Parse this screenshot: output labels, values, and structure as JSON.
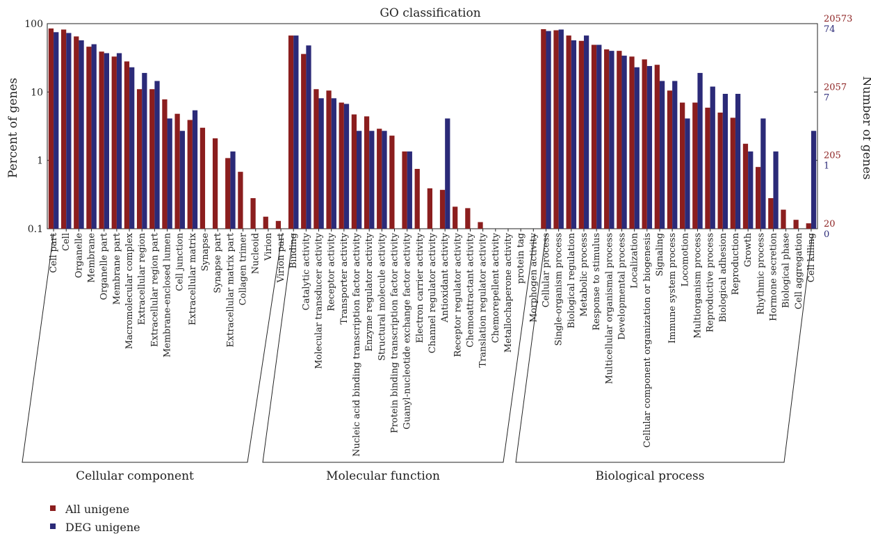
{
  "chart_data": {
    "type": "bar",
    "title": "GO classification",
    "ylabel_left": "Percent of genes",
    "ylabel_right": "Number of genes",
    "y_scale": "log",
    "ylim": [
      0.1,
      100
    ],
    "left_ticks": [
      "100",
      "10",
      "1",
      "0.1"
    ],
    "left_tick_values": [
      100,
      10,
      1,
      0.1
    ],
    "right_ticks_all": [
      "20573",
      "2057",
      "205",
      "20"
    ],
    "right_ticks_deg": [
      "74",
      "7",
      "1",
      "0"
    ],
    "colors": {
      "all": "#8b1e1e",
      "deg": "#2b2a78",
      "right_all_text": "#8b1e1e",
      "right_deg_text": "#2b2a78"
    },
    "series": [
      {
        "name": "All unigene",
        "key": "all"
      },
      {
        "name": "DEG unigene",
        "key": "deg"
      }
    ],
    "categories": [
      "Cell part",
      "Cell",
      "Organelle",
      "Membrane",
      "Organelle part",
      "Membrane part",
      "Macromolecular complex",
      "Extracellular region",
      "Extracellular region part",
      "Membrane-enclosed lumen",
      "Cell junction",
      "Extracellular matrix",
      "Synapse",
      "Synapse part",
      "Extracellular matrix part",
      "Collagen trimer",
      "Nucleoid",
      "Virion",
      "Virion part",
      "Binding",
      "Catalytic activity",
      "Molecular transducer activity",
      "Receptor activity",
      "Transporter activity",
      "Nucleic acid binding transcription factor activity",
      "Enzyme regulator activity",
      "Structural molecule activity",
      "Protein binding transcription factor activity",
      "Guanyl-nucleotide exchange factor activity",
      "Electron carrier activity",
      "Channel regulator activity",
      "Antioxidant activity",
      "Receptor regulator activity",
      "Chemoattractant activity",
      "Translation regulator activity",
      "Chemorepellent activity",
      "Metallochaperone activity",
      "protein tag",
      "Morphogen activity",
      "Cellular process",
      "Single-organism process",
      "Biological regulation",
      "Metabolic process",
      "Response to stimulus",
      "Multicellular organismal process",
      "Developmental process",
      "Localization",
      "Cellular component organization or biogenesis",
      "Signaling",
      "Immune system process",
      "Locomotion",
      "Multiorganism process",
      "Reproductive process",
      "Biological adhesion",
      "Reproduction",
      "Growth",
      "Rhythmic process",
      "Hormone secretion",
      "Biological phase",
      "Cell aggregation",
      "Cell killing"
    ],
    "all_values": [
      85,
      82,
      65,
      46,
      39,
      33,
      28,
      11,
      11,
      7.8,
      4.8,
      3.9,
      3.0,
      2.1,
      1.08,
      0.68,
      0.28,
      0.15,
      0.13,
      67,
      36,
      11,
      10.5,
      7.0,
      4.7,
      4.4,
      2.9,
      2.3,
      1.35,
      0.75,
      0.39,
      0.37,
      0.21,
      0.2,
      0.125,
      0,
      0,
      0,
      0,
      83,
      80,
      67,
      56,
      49,
      42,
      40,
      33,
      30,
      25,
      10.5,
      7.0,
      7.0,
      5.9,
      5.0,
      4.2,
      1.75,
      0.8,
      0.28,
      0.19,
      0.135,
      0.12
    ],
    "deg_values": [
      75,
      73,
      57,
      50,
      37,
      37,
      23,
      19,
      14.5,
      4.1,
      2.7,
      5.4,
      0,
      0,
      1.35,
      0,
      0,
      0,
      0,
      67,
      48,
      8.1,
      8.1,
      6.7,
      2.7,
      2.7,
      2.7,
      0,
      1.35,
      0,
      0,
      4.1,
      0,
      0,
      0,
      0,
      0,
      0,
      0,
      78,
      82,
      57,
      67,
      49,
      40,
      34,
      23,
      24,
      14.5,
      14.5,
      4.1,
      19,
      12,
      9.4,
      9.4,
      1.35,
      4.1,
      1.35,
      0,
      0,
      2.7
    ],
    "groups": [
      {
        "label": "Cellular component",
        "start": 0,
        "end": 18
      },
      {
        "label": "Molecular function",
        "start": 19,
        "end": 38
      },
      {
        "label": "Biological process",
        "start": 39,
        "end": 60
      }
    ],
    "legend": [
      "All unigene",
      "DEG unigene"
    ],
    "legend_position": "bottom-left"
  }
}
